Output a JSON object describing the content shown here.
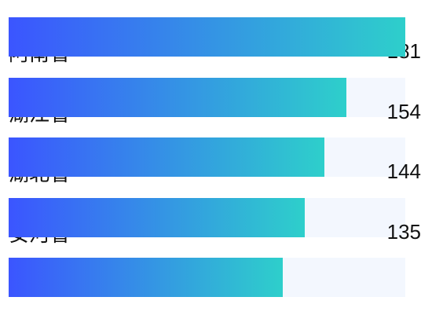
{
  "chart_data": {
    "type": "bar",
    "orientation": "horizontal",
    "categories": [
      "阿南省",
      "湖江省",
      "湖北省",
      "安河省",
      ""
    ],
    "values": [
      181,
      154,
      144,
      135,
      125
    ],
    "value_labels": [
      "181",
      "154",
      "144",
      "135",
      ""
    ],
    "xlim": [
      0,
      181
    ],
    "grid": false,
    "legend": "none",
    "colors": {
      "bar_start": "#3b55ff",
      "bar_end": "#2ecfcb",
      "track": "#f3f7fe",
      "text": "#111111"
    }
  }
}
